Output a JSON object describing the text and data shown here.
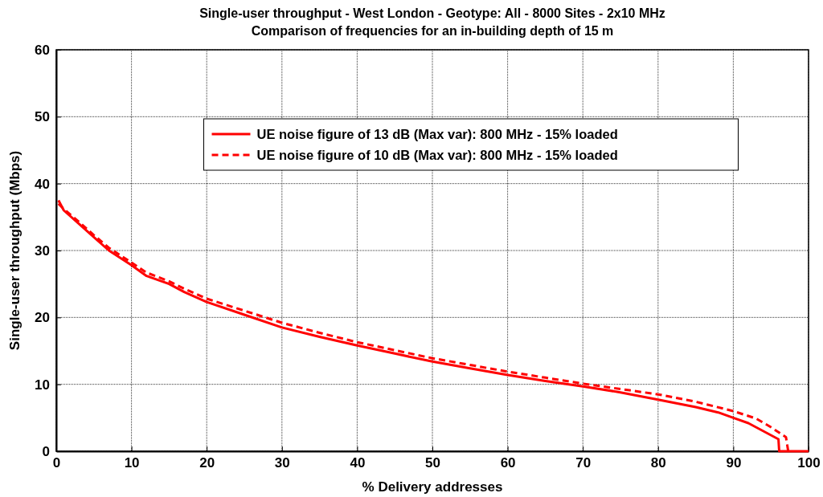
{
  "chart_data": {
    "type": "line",
    "title": "Single-user throughput - West London - Geotype: All - 8000 Sites - 2x10 MHz",
    "subtitle": "Comparison of frequencies for an in-building depth of 15 m",
    "xlabel": "% Delivery addresses",
    "ylabel": "Single-user throughput (Mbps)",
    "xlim": [
      0,
      100
    ],
    "xticks": [
      0,
      10,
      20,
      30,
      40,
      50,
      60,
      70,
      80,
      90,
      100
    ],
    "ylim": [
      0,
      60
    ],
    "yticks": [
      0,
      10,
      20,
      30,
      40,
      50,
      60
    ],
    "grid": true,
    "legend": "top",
    "series": [
      {
        "name": "UE noise figure of 13 dB (Max var): 800 MHz - 15% loaded",
        "color": "#ff0000",
        "line_style": "solid",
        "x": [
          0.3,
          1,
          3,
          5,
          7,
          10,
          12,
          15,
          17,
          20,
          25,
          30,
          35,
          40,
          45,
          50,
          55,
          60,
          65,
          70,
          75,
          80,
          85,
          88,
          90,
          92,
          94,
          96,
          96.1,
          100
        ],
        "values": [
          37.5,
          36,
          34,
          32,
          30,
          27.8,
          26.2,
          25,
          23.8,
          22.3,
          20.4,
          18.5,
          17.1,
          15.8,
          14.6,
          13.4,
          12.4,
          11.4,
          10.5,
          9.7,
          8.8,
          7.7,
          6.6,
          5.8,
          5,
          4.2,
          3,
          1.8,
          0,
          0
        ]
      },
      {
        "name": "UE noise figure of 10 dB (Max var): 800 MHz - 15% loaded",
        "color": "#ff0000",
        "line_style": "dashed",
        "x": [
          0.3,
          1,
          3,
          5,
          7,
          10,
          12,
          15,
          17,
          20,
          25,
          30,
          35,
          40,
          45,
          50,
          55,
          60,
          65,
          70,
          75,
          80,
          85,
          90,
          93,
          95,
          97,
          97.3
        ],
        "values": [
          37,
          36.2,
          34.3,
          32.3,
          30.4,
          28.2,
          26.7,
          25.4,
          24.3,
          22.8,
          21,
          19.2,
          17.7,
          16.3,
          15.1,
          13.9,
          12.9,
          11.9,
          11,
          10.1,
          9.3,
          8.5,
          7.4,
          6,
          4.9,
          3.6,
          2.1,
          0
        ]
      }
    ]
  }
}
